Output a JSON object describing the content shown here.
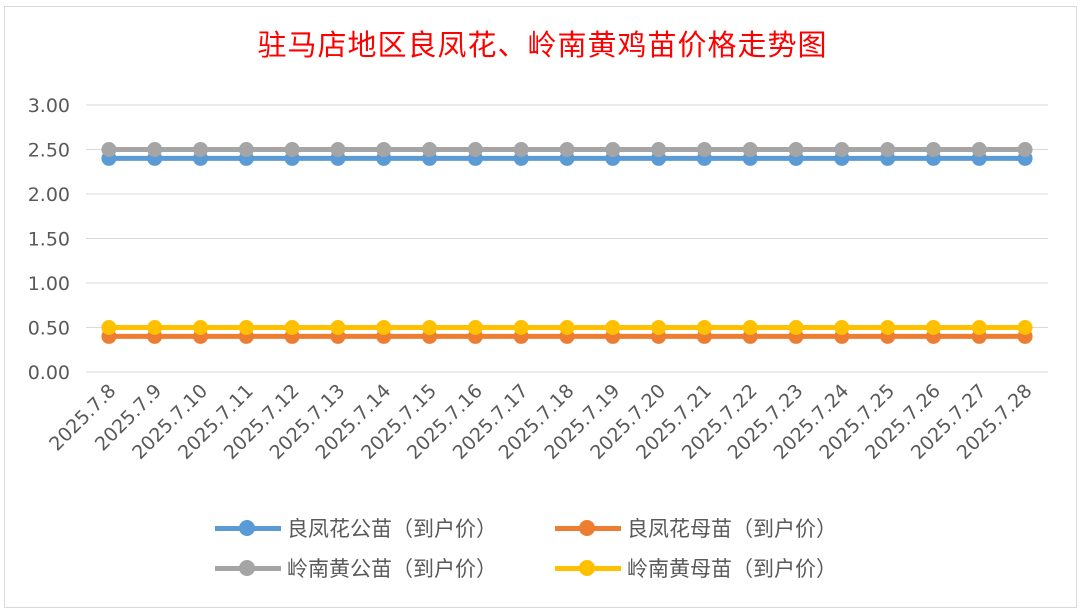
{
  "chart_data": {
    "type": "line",
    "title": "驻马店地区良凤花、岭南黄鸡苗价格走势图",
    "title_color": "#ff0000",
    "xlabel": "",
    "ylabel": "",
    "ylim": [
      0,
      3
    ],
    "ytick_labels": [
      "0.00",
      "0.50",
      "1.00",
      "1.50",
      "2.00",
      "2.50",
      "3.00"
    ],
    "grid": true,
    "legend_position": "bottom",
    "categories": [
      "2025.7.8",
      "2025.7.9",
      "2025.7.10",
      "2025.7.11",
      "2025.7.12",
      "2025.7.13",
      "2025.7.14",
      "2025.7.15",
      "2025.7.16",
      "2025.7.17",
      "2025.7.18",
      "2025.7.19",
      "2025.7.20",
      "2025.7.21",
      "2025.7.22",
      "2025.7.23",
      "2025.7.24",
      "2025.7.25",
      "2025.7.26",
      "2025.7.27",
      "2025.7.28"
    ],
    "series": [
      {
        "name": "良凤花公苗（到户价）",
        "color": "#5b9bd5",
        "values": [
          2.4,
          2.4,
          2.4,
          2.4,
          2.4,
          2.4,
          2.4,
          2.4,
          2.4,
          2.4,
          2.4,
          2.4,
          2.4,
          2.4,
          2.4,
          2.4,
          2.4,
          2.4,
          2.4,
          2.4,
          2.4
        ]
      },
      {
        "name": "良凤花母苗（到户价）",
        "color": "#ed7d31",
        "values": [
          0.4,
          0.4,
          0.4,
          0.4,
          0.4,
          0.4,
          0.4,
          0.4,
          0.4,
          0.4,
          0.4,
          0.4,
          0.4,
          0.4,
          0.4,
          0.4,
          0.4,
          0.4,
          0.4,
          0.4,
          0.4
        ]
      },
      {
        "name": "岭南黄公苗（到户价）",
        "color": "#a5a5a5",
        "values": [
          2.5,
          2.5,
          2.5,
          2.5,
          2.5,
          2.5,
          2.5,
          2.5,
          2.5,
          2.5,
          2.5,
          2.5,
          2.5,
          2.5,
          2.5,
          2.5,
          2.5,
          2.5,
          2.5,
          2.5,
          2.5
        ]
      },
      {
        "name": "岭南黄母苗（到户价）",
        "color": "#ffc000",
        "values": [
          0.5,
          0.5,
          0.5,
          0.5,
          0.5,
          0.5,
          0.5,
          0.5,
          0.5,
          0.5,
          0.5,
          0.5,
          0.5,
          0.5,
          0.5,
          0.5,
          0.5,
          0.5,
          0.5,
          0.5,
          0.5
        ]
      }
    ]
  }
}
